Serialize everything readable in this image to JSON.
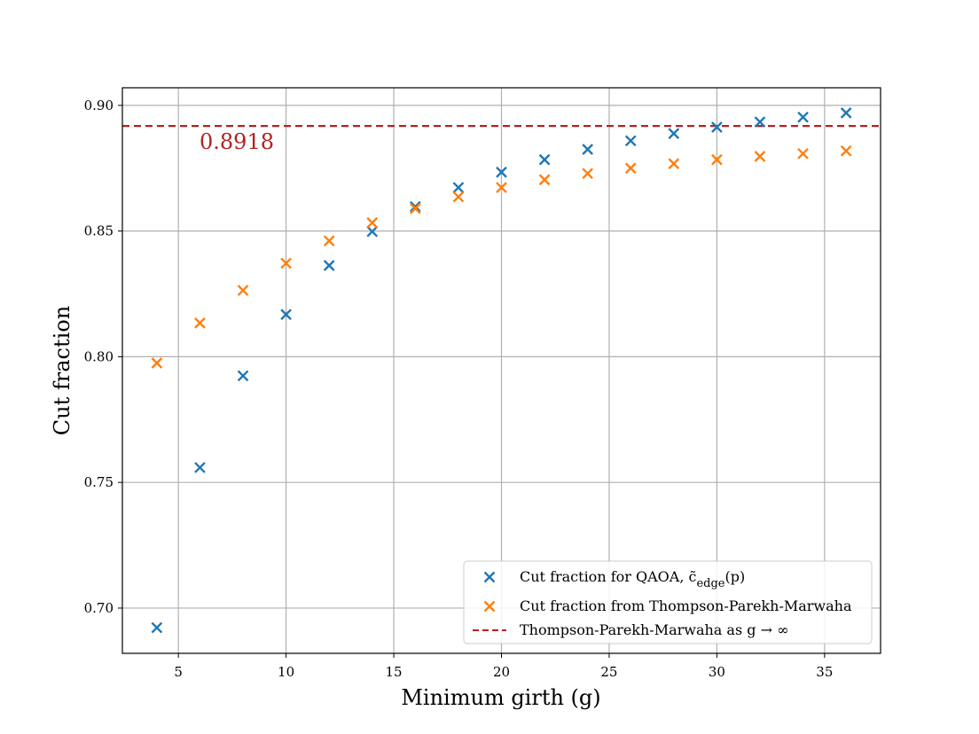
{
  "chart_data": {
    "type": "scatter",
    "title": "",
    "xlabel": "Minimum girth (g)",
    "ylabel": "Cut fraction",
    "xlim": [
      2.4,
      37.6
    ],
    "ylim": [
      0.682,
      0.907
    ],
    "xticks": [
      5,
      10,
      15,
      20,
      25,
      30,
      35
    ],
    "yticks": [
      0.7,
      0.75,
      0.8,
      0.85,
      0.9
    ],
    "xtick_labels": [
      "5",
      "10",
      "15",
      "20",
      "25",
      "30",
      "35"
    ],
    "ytick_labels": [
      "0.70",
      "0.75",
      "0.80",
      "0.85",
      "0.90"
    ],
    "grid": true,
    "legend_position": "lower-right",
    "series": [
      {
        "name": "Cut fraction for QAOA, c̃edge(p)",
        "legend_label": "Cut fraction for QAOA, c̃",
        "legend_sub": "edge",
        "legend_suffix": "(p)",
        "marker": "x",
        "color": "#1f77b4",
        "x": [
          4,
          6,
          8,
          10,
          12,
          14,
          16,
          18,
          20,
          22,
          24,
          26,
          28,
          30,
          32,
          34,
          36
        ],
        "y": [
          0.6922,
          0.7559,
          0.7924,
          0.8168,
          0.8363,
          0.8498,
          0.8597,
          0.8673,
          0.8734,
          0.8784,
          0.8825,
          0.8859,
          0.8888,
          0.8913,
          0.8934,
          0.8953,
          0.897
        ]
      },
      {
        "name": "Cut fraction from Thompson-Parekh-Marwaha",
        "legend_label": "Cut fraction from Thompson-Parekh-Marwaha",
        "marker": "x",
        "color": "#ff7f0e",
        "x": [
          4,
          6,
          8,
          10,
          12,
          14,
          16,
          18,
          20,
          22,
          24,
          26,
          28,
          30,
          32,
          34,
          36
        ],
        "y": [
          0.7975,
          0.8134,
          0.8264,
          0.8372,
          0.8461,
          0.8533,
          0.859,
          0.8636,
          0.8673,
          0.8704,
          0.8729,
          0.875,
          0.8768,
          0.8784,
          0.8797,
          0.8808,
          0.8819
        ]
      }
    ],
    "reference_line": {
      "name": "Thompson-Parekh-Marwaha as g → ∞",
      "legend_label": "Thompson-Parekh-Marwaha as g → ∞",
      "value": 0.8918,
      "label": "0.8918",
      "color": "#b22222",
      "style": "dashed"
    }
  }
}
